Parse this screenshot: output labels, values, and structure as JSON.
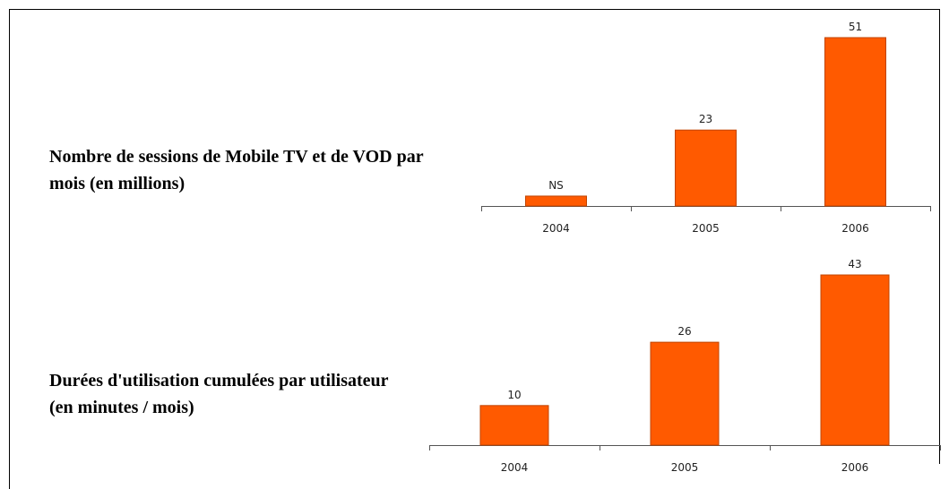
{
  "chart_data": [
    {
      "type": "bar",
      "title": "Nombre de sessions de Mobile TV et de VOD par mois (en millions)",
      "categories": [
        "2004",
        "2005",
        "2006"
      ],
      "values": [
        3,
        23,
        51
      ],
      "value_labels": [
        "NS",
        "23",
        "51"
      ],
      "color": "#ff5a00"
    },
    {
      "type": "bar",
      "title": "Durées d'utilisation cumulées par utilisateur (en minutes / mois)",
      "categories": [
        "2004",
        "2005",
        "2006"
      ],
      "values": [
        10,
        26,
        43
      ],
      "color": "#ff5a00"
    }
  ]
}
